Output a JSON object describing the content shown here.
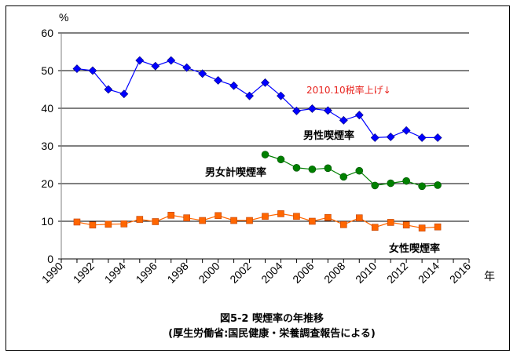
{
  "chart_data": {
    "type": "line",
    "title": "図5-2 喫煙率の年推移",
    "subtitle": "(厚生労働省:国民健康・栄養調査報告による)",
    "ylabel": "%",
    "xlabel": "年",
    "ylim": [
      0,
      60
    ],
    "xlim": [
      1990,
      2016
    ],
    "yticks": [
      "0",
      "10",
      "20",
      "30",
      "40",
      "50",
      "60"
    ],
    "xticks": [
      "1990",
      "1992",
      "1994",
      "1996",
      "1998",
      "2000",
      "2002",
      "2004",
      "2006",
      "2008",
      "2010",
      "2012",
      "2014",
      "2016"
    ],
    "grid": "horizontal",
    "annotation": "2010.10税率上げ↓",
    "series": [
      {
        "name": "男性喫煙率",
        "color": "#0000ff",
        "marker": "diamond",
        "x": [
          1991,
          1992,
          1993,
          1994,
          1995,
          1996,
          1997,
          1998,
          1999,
          2000,
          2001,
          2002,
          2003,
          2004,
          2005,
          2006,
          2007,
          2008,
          2009,
          2010,
          2011,
          2012,
          2013,
          2014
        ],
        "values": [
          50.5,
          50.0,
          45.0,
          43.8,
          52.7,
          51.2,
          52.7,
          50.8,
          49.2,
          47.4,
          46.0,
          43.3,
          46.8,
          43.3,
          39.3,
          39.9,
          39.4,
          36.8,
          38.2,
          32.2,
          32.4,
          34.1,
          32.2,
          32.2
        ]
      },
      {
        "name": "男女計喫煙率",
        "color": "#008000",
        "marker": "circle",
        "x": [
          2003,
          2004,
          2005,
          2006,
          2007,
          2008,
          2009,
          2010,
          2011,
          2012,
          2013,
          2014
        ],
        "values": [
          27.7,
          26.4,
          24.2,
          23.8,
          24.1,
          21.8,
          23.4,
          19.5,
          20.1,
          20.7,
          19.3,
          19.6
        ]
      },
      {
        "name": "女性喫煙率",
        "color": "#ff6600",
        "marker": "square",
        "x": [
          1991,
          1992,
          1993,
          1994,
          1995,
          1996,
          1997,
          1998,
          1999,
          2000,
          2001,
          2002,
          2003,
          2004,
          2005,
          2006,
          2007,
          2008,
          2009,
          2010,
          2011,
          2012,
          2013,
          2014
        ],
        "values": [
          9.8,
          9.0,
          9.2,
          9.3,
          10.5,
          9.9,
          11.6,
          10.9,
          10.2,
          11.5,
          10.2,
          10.2,
          11.3,
          12.0,
          11.3,
          10.0,
          11.0,
          9.1,
          10.9,
          8.4,
          9.7,
          9.0,
          8.2,
          8.5
        ]
      }
    ]
  }
}
